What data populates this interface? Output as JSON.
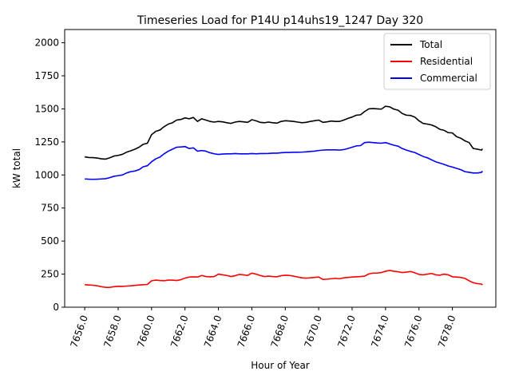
{
  "chart_data": {
    "type": "line",
    "title": "Timeseries Load for P14U p14uhs19_1247  Day 320",
    "xlabel": "Hour of Year",
    "ylabel": "kW total",
    "xlim": [
      7654.8,
      7680.6
    ],
    "ylim": [
      0,
      2100
    ],
    "xticks": [
      7656,
      7658,
      7660,
      7662,
      7664,
      7666,
      7668,
      7670,
      7672,
      7674,
      7676,
      7678
    ],
    "xtick_labels": [
      "7656.0",
      "7658.0",
      "7660.0",
      "7662.0",
      "7664.0",
      "7666.0",
      "7668.0",
      "7670.0",
      "7672.0",
      "7674.0",
      "7676.0",
      "7678.0"
    ],
    "yticks": [
      0,
      250,
      500,
      750,
      1000,
      1250,
      1500,
      1750,
      2000
    ],
    "ytick_labels": [
      "0",
      "250",
      "500",
      "750",
      "1000",
      "1250",
      "1500",
      "1750",
      "2000"
    ],
    "legend_position": "top-right",
    "x": [
      7656.0,
      7656.25,
      7656.5,
      7656.75,
      7657.0,
      7657.25,
      7657.5,
      7657.75,
      7658.0,
      7658.25,
      7658.5,
      7658.75,
      7659.0,
      7659.25,
      7659.5,
      7659.75,
      7660.0,
      7660.25,
      7660.5,
      7660.75,
      7661.0,
      7661.25,
      7661.5,
      7661.75,
      7662.0,
      7662.25,
      7662.5,
      7662.75,
      7663.0,
      7663.25,
      7663.5,
      7663.75,
      7664.0,
      7664.25,
      7664.5,
      7664.75,
      7665.0,
      7665.25,
      7665.5,
      7665.75,
      7666.0,
      7666.25,
      7666.5,
      7666.75,
      7667.0,
      7667.25,
      7667.5,
      7667.75,
      7668.0,
      7668.25,
      7668.5,
      7668.75,
      7669.0,
      7669.25,
      7669.5,
      7669.75,
      7670.0,
      7670.25,
      7670.5,
      7670.75,
      7671.0,
      7671.25,
      7671.5,
      7671.75,
      7672.0,
      7672.25,
      7672.5,
      7672.75,
      7673.0,
      7673.25,
      7673.5,
      7673.75,
      7674.0,
      7674.25,
      7674.5,
      7674.75,
      7675.0,
      7675.25,
      7675.5,
      7675.75,
      7676.0,
      7676.25,
      7676.5,
      7676.75,
      7677.0,
      7677.25,
      7677.5,
      7677.75,
      7678.0,
      7678.25,
      7678.5,
      7678.75,
      7679.0,
      7679.25,
      7679.5,
      7679.75
    ],
    "series": [
      {
        "name": "Total",
        "color": "#000000",
        "values": [
          1137,
          1132,
          1131,
          1128,
          1122,
          1120,
          1130,
          1143,
          1148,
          1156,
          1172,
          1183,
          1195,
          1210,
          1232,
          1240,
          1305,
          1330,
          1340,
          1365,
          1385,
          1395,
          1415,
          1420,
          1432,
          1425,
          1435,
          1405,
          1425,
          1415,
          1405,
          1400,
          1405,
          1402,
          1395,
          1390,
          1400,
          1405,
          1402,
          1398,
          1418,
          1410,
          1398,
          1395,
          1400,
          1395,
          1392,
          1405,
          1410,
          1408,
          1405,
          1400,
          1395,
          1398,
          1405,
          1410,
          1415,
          1398,
          1402,
          1408,
          1405,
          1405,
          1415,
          1428,
          1438,
          1452,
          1455,
          1480,
          1500,
          1502,
          1500,
          1498,
          1520,
          1515,
          1498,
          1490,
          1465,
          1452,
          1450,
          1438,
          1410,
          1390,
          1385,
          1378,
          1365,
          1345,
          1338,
          1320,
          1318,
          1290,
          1278,
          1258,
          1245,
          1200,
          1195,
          1188
        ],
        "end": 1198
      },
      {
        "name": "Residential",
        "color": "#ff0000",
        "values": [
          170,
          168,
          166,
          162,
          155,
          150,
          150,
          155,
          158,
          157,
          160,
          162,
          165,
          168,
          170,
          172,
          200,
          205,
          202,
          200,
          205,
          205,
          202,
          208,
          220,
          228,
          230,
          228,
          240,
          232,
          230,
          232,
          250,
          245,
          240,
          232,
          238,
          248,
          245,
          240,
          258,
          250,
          240,
          232,
          235,
          232,
          230,
          238,
          242,
          240,
          235,
          228,
          222,
          220,
          222,
          225,
          228,
          210,
          212,
          215,
          218,
          215,
          222,
          225,
          228,
          230,
          232,
          235,
          252,
          258,
          258,
          262,
          272,
          278,
          272,
          268,
          262,
          265,
          270,
          260,
          248,
          245,
          250,
          255,
          245,
          242,
          250,
          245,
          230,
          228,
          225,
          218,
          200,
          185,
          178,
          175
        ],
        "end": 168
      },
      {
        "name": "Commercial",
        "color": "#0000ff",
        "values": [
          970,
          968,
          967,
          968,
          970,
          972,
          980,
          990,
          995,
          1000,
          1015,
          1025,
          1030,
          1040,
          1062,
          1070,
          1100,
          1122,
          1135,
          1160,
          1180,
          1195,
          1210,
          1212,
          1215,
          1200,
          1205,
          1180,
          1185,
          1180,
          1168,
          1160,
          1155,
          1158,
          1160,
          1160,
          1162,
          1160,
          1160,
          1160,
          1162,
          1160,
          1162,
          1162,
          1163,
          1165,
          1165,
          1168,
          1170,
          1170,
          1172,
          1172,
          1173,
          1175,
          1178,
          1180,
          1185,
          1188,
          1190,
          1190,
          1190,
          1188,
          1192,
          1200,
          1210,
          1220,
          1222,
          1245,
          1248,
          1245,
          1242,
          1240,
          1245,
          1235,
          1225,
          1218,
          1200,
          1188,
          1178,
          1170,
          1155,
          1140,
          1130,
          1115,
          1100,
          1090,
          1080,
          1068,
          1060,
          1050,
          1040,
          1025,
          1020,
          1015,
          1015,
          1020
        ],
        "end": 1030
      }
    ]
  }
}
